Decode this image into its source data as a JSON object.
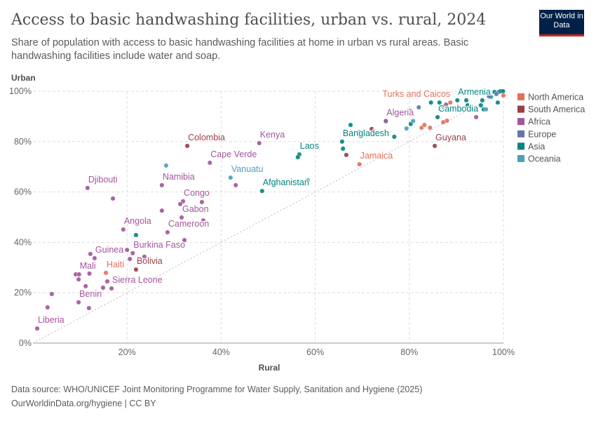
{
  "header": {
    "title": "Access to basic handwashing facilities, urban vs. rural, 2024",
    "subtitle": "Share of population with access to basic handwashing facilities at home in urban vs rural areas. Basic handwashing facilities include water and soap.",
    "logo": "Our World in Data"
  },
  "footer": {
    "source": "Data source: WHO/UNICEF Joint Monitoring Programme for Water Supply, Sanitation and Hygiene (2025)",
    "url": "OurWorldinData.org/hygiene | CC BY"
  },
  "chart_data": {
    "type": "scatter",
    "xlabel": "Rural",
    "ylabel": "Urban",
    "xlim": [
      0,
      100
    ],
    "ylim": [
      0,
      100
    ],
    "xticks": [
      "20%",
      "40%",
      "60%",
      "80%",
      "100%"
    ],
    "yticks": [
      "0%",
      "20%",
      "40%",
      "60%",
      "80%",
      "100%"
    ],
    "grid": true,
    "legend_position": "right",
    "diagonal_reference_line": true,
    "legend": [
      {
        "name": "North America",
        "color": "#e56e5a"
      },
      {
        "name": "South America",
        "color": "#9a3e47"
      },
      {
        "name": "Africa",
        "color": "#a2559c"
      },
      {
        "name": "Europe",
        "color": "#6377aa"
      },
      {
        "name": "Asia",
        "color": "#00847e"
      },
      {
        "name": "Oceania",
        "color": "#4c9fba"
      }
    ],
    "points": [
      {
        "r": "Africa",
        "x": 0.9,
        "y": 5.8,
        "label": "Liberia"
      },
      {
        "r": "Africa",
        "x": 3.1,
        "y": 14.2
      },
      {
        "r": "Africa",
        "x": 4.0,
        "y": 19.5
      },
      {
        "r": "Africa",
        "x": 9.7,
        "y": 16.2,
        "label": "Benin"
      },
      {
        "r": "Africa",
        "x": 11.9,
        "y": 13.9
      },
      {
        "r": "Africa",
        "x": 9.1,
        "y": 27.3
      },
      {
        "r": "Africa",
        "x": 9.8,
        "y": 27.3,
        "label": "Mali"
      },
      {
        "r": "Africa",
        "x": 11.2,
        "y": 31.5
      },
      {
        "r": "Africa",
        "x": 12.2,
        "y": 35.4
      },
      {
        "r": "Africa",
        "x": 13.1,
        "y": 33.7,
        "label": "Guinea"
      },
      {
        "r": "Africa",
        "x": 9.7,
        "y": 25.3
      },
      {
        "r": "Africa",
        "x": 11.2,
        "y": 22.6
      },
      {
        "r": "Africa",
        "x": 14.9,
        "y": 22.0
      },
      {
        "r": "Africa",
        "x": 15.8,
        "y": 24.5
      },
      {
        "r": "Africa",
        "x": 16.7,
        "y": 21.7,
        "label": "Sierra Leone"
      },
      {
        "r": "Africa",
        "x": 12.0,
        "y": 27.6
      },
      {
        "r": "Africa",
        "x": 20.0,
        "y": 25.6
      },
      {
        "r": "Africa",
        "x": 20.6,
        "y": 33.4
      },
      {
        "r": "North America",
        "x": 15.5,
        "y": 27.9,
        "label": "Haiti"
      },
      {
        "r": "Africa",
        "x": 20.0,
        "y": 37.0
      },
      {
        "r": "Africa",
        "x": 21.2,
        "y": 35.7,
        "label": "Burkina Faso"
      },
      {
        "r": "Africa",
        "x": 23.7,
        "y": 34.3
      },
      {
        "r": "South America",
        "x": 21.9,
        "y": 29.2,
        "label": "Bolivia"
      },
      {
        "r": "Africa",
        "x": 19.2,
        "y": 45.1,
        "label": "Angola"
      },
      {
        "r": "Asia",
        "x": 21.9,
        "y": 42.9
      },
      {
        "r": "Africa",
        "x": 11.6,
        "y": 61.6,
        "label": "Djibouti"
      },
      {
        "r": "Africa",
        "x": 17.0,
        "y": 57.4
      },
      {
        "r": "Africa",
        "x": 27.4,
        "y": 62.7,
        "label": "Namibia"
      },
      {
        "r": "Africa",
        "x": 27.4,
        "y": 52.6
      },
      {
        "r": "Africa",
        "x": 31.9,
        "y": 56.3,
        "label": "Congo"
      },
      {
        "r": "Africa",
        "x": 31.3,
        "y": 55.2
      },
      {
        "r": "Africa",
        "x": 35.9,
        "y": 56.0
      },
      {
        "r": "Africa",
        "x": 31.6,
        "y": 49.9,
        "label": "Gabon"
      },
      {
        "r": "Africa",
        "x": 36.2,
        "y": 48.7
      },
      {
        "r": "Africa",
        "x": 28.6,
        "y": 44.0,
        "label": "Cameroon"
      },
      {
        "r": "Africa",
        "x": 32.2,
        "y": 40.9
      },
      {
        "r": "Africa",
        "x": 37.6,
        "y": 71.6,
        "label": "Cape Verde"
      },
      {
        "r": "Africa",
        "x": 48.1,
        "y": 79.4,
        "label": "Kenya"
      },
      {
        "r": "Africa",
        "x": 43.1,
        "y": 62.7
      },
      {
        "r": "Oceania",
        "x": 28.3,
        "y": 70.5
      },
      {
        "r": "Oceania",
        "x": 42.0,
        "y": 65.7,
        "label": "Vanuatu"
      },
      {
        "r": "Asia",
        "x": 48.7,
        "y": 60.4,
        "label": "Afghanistan"
      },
      {
        "r": "Oceania",
        "x": 58.4,
        "y": 64.6
      },
      {
        "r": "Asia",
        "x": 56.6,
        "y": 74.9,
        "label": "Laos"
      },
      {
        "r": "Asia",
        "x": 56.3,
        "y": 73.8
      },
      {
        "r": "South America",
        "x": 32.8,
        "y": 78.3,
        "label": "Colombia"
      },
      {
        "r": "North America",
        "x": 69.4,
        "y": 71.0,
        "label": "Jamaica"
      },
      {
        "r": "South America",
        "x": 66.6,
        "y": 74.7
      },
      {
        "r": "Asia",
        "x": 65.9,
        "y": 77.2
      },
      {
        "r": "Asia",
        "x": 65.7,
        "y": 80.0,
        "label": "Bangladesh"
      },
      {
        "r": "Asia",
        "x": 67.5,
        "y": 86.6
      },
      {
        "r": "Oceania",
        "x": 69.4,
        "y": 83.8
      },
      {
        "r": "South America",
        "x": 72.0,
        "y": 85.0
      },
      {
        "r": "Asia",
        "x": 75.0,
        "y": 88.0
      },
      {
        "r": "Asia",
        "x": 76.8,
        "y": 81.9
      },
      {
        "r": "Oceania",
        "x": 79.4,
        "y": 85.2
      },
      {
        "r": "Asia",
        "x": 80.3,
        "y": 87.0
      },
      {
        "r": "Oceania",
        "x": 80.8,
        "y": 88.2
      },
      {
        "r": "Europe",
        "x": 80.2,
        "y": 92.2
      },
      {
        "r": "Africa",
        "x": 75.0,
        "y": 88.2,
        "label": "Algeria"
      },
      {
        "r": "South America",
        "x": 85.4,
        "y": 78.3,
        "label": "Guyana"
      },
      {
        "r": "North America",
        "x": 82.6,
        "y": 85.5
      },
      {
        "r": "North America",
        "x": 83.2,
        "y": 86.6
      },
      {
        "r": "North America",
        "x": 84.4,
        "y": 85.5
      },
      {
        "r": "North America",
        "x": 87.2,
        "y": 87.7
      },
      {
        "r": "North America",
        "x": 88.0,
        "y": 88.3
      },
      {
        "r": "North America",
        "x": 88.7,
        "y": 95.5,
        "label": "Turks and Caicos"
      },
      {
        "r": "Europe",
        "x": 82.0,
        "y": 93.6
      },
      {
        "r": "Asia",
        "x": 84.6,
        "y": 95.5
      },
      {
        "r": "Asia",
        "x": 86.4,
        "y": 95.5
      },
      {
        "r": "Africa",
        "x": 87.8,
        "y": 94.7
      },
      {
        "r": "Asia",
        "x": 87.3,
        "y": 93.9
      },
      {
        "r": "Asia",
        "x": 86.0,
        "y": 89.7,
        "label": "Cambodia"
      },
      {
        "r": "Asia",
        "x": 90.2,
        "y": 96.4,
        "label": "Armenia"
      },
      {
        "r": "Asia",
        "x": 92.1,
        "y": 96.4
      },
      {
        "r": "Asia",
        "x": 92.4,
        "y": 94.4
      },
      {
        "r": "Asia",
        "x": 95.2,
        "y": 94.4
      },
      {
        "r": "Asia",
        "x": 95.8,
        "y": 92.8
      },
      {
        "r": "Oceania",
        "x": 96.3,
        "y": 92.8
      },
      {
        "r": "Asia",
        "x": 95.5,
        "y": 96.4
      },
      {
        "r": "Africa",
        "x": 94.2,
        "y": 89.7
      },
      {
        "r": "Asia",
        "x": 98.1,
        "y": 99.7
      },
      {
        "r": "Asia",
        "x": 99.0,
        "y": 99.7
      },
      {
        "r": "Asia",
        "x": 99.4,
        "y": 100
      },
      {
        "r": "Asia",
        "x": 99.9,
        "y": 100
      },
      {
        "r": "Asia",
        "x": 98.8,
        "y": 95.5
      },
      {
        "r": "Asia",
        "x": 97.3,
        "y": 97.8
      },
      {
        "r": "Europe",
        "x": 98.5,
        "y": 98.9
      },
      {
        "r": "Europe",
        "x": 96.9,
        "y": 98.0
      },
      {
        "r": "North America",
        "x": 100,
        "y": 98.3
      }
    ]
  }
}
